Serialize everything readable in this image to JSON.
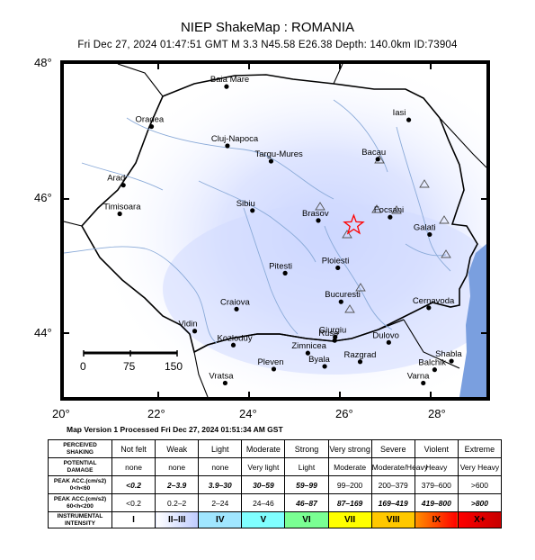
{
  "title": "NIEP ShakeMap : ROMANIA",
  "subtitle": "Fri Dec 27, 2024 01:47:51 GMT    M 3.3    N45.58 E26.38    Depth: 140.0km    ID:73904",
  "version_line": "Map Version 1 Processed Fri Dec 27, 2024 01:51:34 AM GST",
  "axes": {
    "lat_labels": [
      "48°",
      "46°",
      "44°"
    ],
    "lon_labels": [
      "20°",
      "22°",
      "24°",
      "26°",
      "28°"
    ],
    "lon_range": [
      20,
      29.3
    ],
    "lat_range": [
      43,
      48
    ]
  },
  "epicenter": {
    "lat": 45.58,
    "lon": 26.38,
    "marker": "star-icon",
    "color": "#ff0000"
  },
  "scale_bar": {
    "labels": [
      "0",
      "75",
      "150"
    ]
  },
  "cities": [
    {
      "name": "Baia Mare",
      "lat": 47.66,
      "lon": 23.58
    },
    {
      "name": "Oradea",
      "lat": 47.06,
      "lon": 21.93
    },
    {
      "name": "Cluj-Napoca",
      "lat": 46.77,
      "lon": 23.6
    },
    {
      "name": "Targu-Mures",
      "lat": 46.54,
      "lon": 24.56
    },
    {
      "name": "Iasi",
      "lat": 47.16,
      "lon": 27.59
    },
    {
      "name": "Bacau",
      "lat": 46.57,
      "lon": 26.91
    },
    {
      "name": "Arad",
      "lat": 46.18,
      "lon": 21.31
    },
    {
      "name": "Timisoara",
      "lat": 45.75,
      "lon": 21.23
    },
    {
      "name": "Sibiu",
      "lat": 45.8,
      "lon": 24.15
    },
    {
      "name": "Brasov",
      "lat": 45.65,
      "lon": 25.6
    },
    {
      "name": "Focsani",
      "lat": 45.7,
      "lon": 27.18
    },
    {
      "name": "Galati",
      "lat": 45.44,
      "lon": 28.05
    },
    {
      "name": "Ploiesti",
      "lat": 44.94,
      "lon": 26.03
    },
    {
      "name": "Pitesti",
      "lat": 44.86,
      "lon": 24.87
    },
    {
      "name": "Bucuresti",
      "lat": 44.43,
      "lon": 26.1
    },
    {
      "name": "Craiova",
      "lat": 44.32,
      "lon": 23.8
    },
    {
      "name": "Cernavoda",
      "lat": 44.34,
      "lon": 28.03
    },
    {
      "name": "Giurgiu",
      "lat": 43.9,
      "lon": 25.97
    },
    {
      "name": "Zimnicea",
      "lat": 43.66,
      "lon": 25.37
    },
    {
      "name": "Ruse",
      "lat": 43.85,
      "lon": 25.96
    },
    {
      "name": "Dulovo",
      "lat": 43.82,
      "lon": 27.15
    },
    {
      "name": "Kozloduy",
      "lat": 43.78,
      "lon": 23.73
    },
    {
      "name": "Vidin",
      "lat": 43.99,
      "lon": 22.88
    },
    {
      "name": "Pleven",
      "lat": 43.42,
      "lon": 24.62
    },
    {
      "name": "Byala",
      "lat": 43.46,
      "lon": 25.74
    },
    {
      "name": "Razgrad",
      "lat": 43.53,
      "lon": 26.52
    },
    {
      "name": "Shabla",
      "lat": 43.54,
      "lon": 28.53
    },
    {
      "name": "Balchik",
      "lat": 43.41,
      "lon": 28.16
    },
    {
      "name": "Varna",
      "lat": 43.21,
      "lon": 27.91
    },
    {
      "name": "Vratsa",
      "lat": 43.21,
      "lon": 23.55
    }
  ],
  "legend": {
    "row_headers": [
      [
        "PERCEIVED",
        "SHAKING"
      ],
      [
        "POTENTIAL",
        "DAMAGE"
      ],
      [
        "PEAK ACC.(cm/s2)",
        "0<h<60"
      ],
      [
        "PEAK ACC.(cm/s2)",
        "60<h<200"
      ],
      [
        "INSTRUMENTAL",
        "INTENSITY"
      ]
    ],
    "shaking": [
      "Not felt",
      "Weak",
      "Light",
      "Moderate",
      "Strong",
      "Very strong",
      "Severe",
      "Violent",
      "Extreme"
    ],
    "damage": [
      "none",
      "none",
      "none",
      "Very light",
      "Light",
      "Moderate",
      "Moderate/Heavy",
      "Heavy",
      "Very Heavy"
    ],
    "acc_shallow": [
      "<0.2",
      "2–3.9",
      "3.9–30",
      "30–59",
      "59–99",
      "99–200",
      "200–379",
      "379–600",
      ">600"
    ],
    "acc_deep": [
      "<0.2",
      "0.2–2",
      "2–24",
      "24–46",
      "46–87",
      "87–169",
      "169–419",
      "419–800",
      ">800"
    ],
    "intensity": [
      "I",
      "II–III",
      "IV",
      "V",
      "VI",
      "VII",
      "VIII",
      "IX",
      "X+"
    ],
    "colors": [
      "#ffffff",
      "#bfccff",
      "#a0e6ff",
      "#80ffff",
      "#7aff93",
      "#ffff00",
      "#ffc800",
      "#ff9100",
      "#ff0000",
      "#c80000"
    ]
  }
}
